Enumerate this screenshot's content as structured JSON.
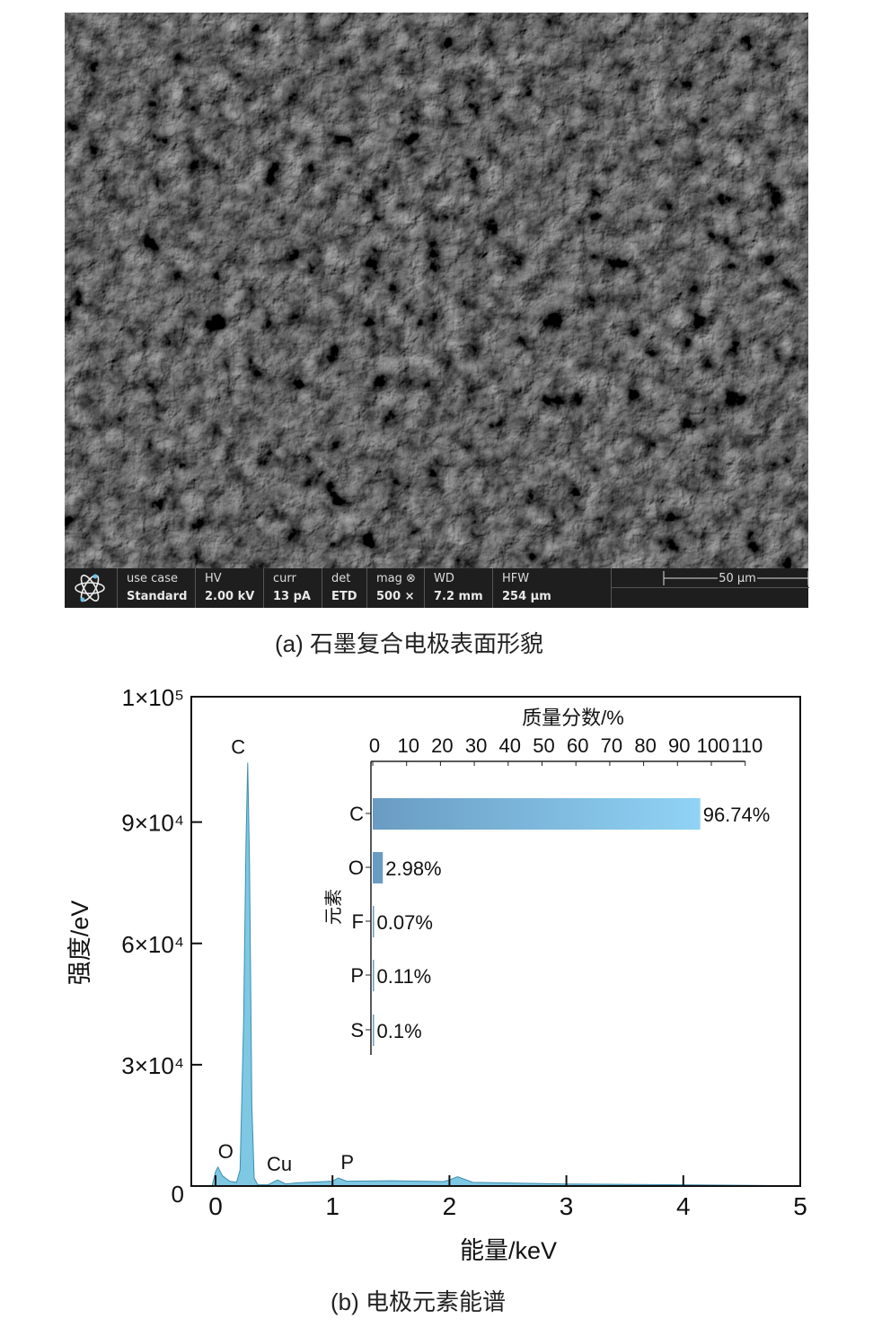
{
  "panel_a": {
    "caption": "(a) 石墨复合电极表面形貌",
    "info_bar": [
      {
        "key": "use case",
        "value": "Standard"
      },
      {
        "key": "HV",
        "value": "2.00 kV"
      },
      {
        "key": "curr",
        "value": "13 pA"
      },
      {
        "key": "det",
        "value": "ETD"
      },
      {
        "key": "mag ⊗",
        "value": "500 ×"
      },
      {
        "key": "WD",
        "value": "7.2 mm"
      },
      {
        "key": "HFW",
        "value": "254 μm"
      }
    ],
    "scale_bar": "50 μm",
    "logo_icon": "atom-icon"
  },
  "panel_b": {
    "caption": "(b) 电极元素能谱"
  },
  "chart_data": [
    {
      "type": "area",
      "xlabel": "能量/keV",
      "ylabel": "强度/eV",
      "xlim": [
        -0.2,
        5
      ],
      "ylim": [
        0,
        121000
      ],
      "xticks": [
        0,
        1,
        2,
        3,
        4,
        5
      ],
      "xtick_labels": [
        "0",
        "1",
        "2",
        "3",
        "4",
        "5"
      ],
      "yticks": [
        0,
        30000,
        60000,
        90000
      ],
      "ytick_labels": [
        "0",
        "3×10⁴",
        "6×10⁴",
        "9×10⁴"
      ],
      "ymax_label": "1×10⁵",
      "color": "#7ec8e3",
      "peak_labels": [
        {
          "label": "C",
          "x": 0.27,
          "y": 104700
        },
        {
          "label": "O",
          "x": 0.01,
          "y": 4700
        },
        {
          "label": "Cu",
          "x": 0.53,
          "y": 1500
        },
        {
          "label": "P",
          "x": 1.05,
          "y": 2000
        }
      ],
      "x": [
        -0.03,
        0.0,
        0.02,
        0.06,
        0.12,
        0.18,
        0.21,
        0.24,
        0.26,
        0.275,
        0.29,
        0.31,
        0.33,
        0.36,
        0.45,
        0.53,
        0.6,
        0.7,
        1.0,
        1.05,
        1.12,
        1.5,
        1.95,
        2.0,
        2.07,
        2.2,
        3.0,
        4.0,
        4.8
      ],
      "y": [
        0,
        3500,
        4700,
        2500,
        1200,
        900,
        4000,
        40000,
        85000,
        104700,
        80000,
        20000,
        2000,
        300,
        300,
        1500,
        500,
        800,
        1200,
        2000,
        1200,
        1300,
        1100,
        1500,
        2300,
        900,
        500,
        300,
        100
      ]
    },
    {
      "type": "bar",
      "orientation": "horizontal",
      "xlabel": "质量分数/%",
      "ylabel": "元素",
      "xlim": [
        0,
        110
      ],
      "xticks": [
        0,
        10,
        20,
        30,
        40,
        50,
        60,
        70,
        80,
        90,
        100,
        110
      ],
      "categories": [
        "C",
        "O",
        "F",
        "P",
        "S"
      ],
      "values": [
        96.74,
        2.98,
        0.07,
        0.11,
        0.1
      ],
      "data_labels": [
        "96.74%",
        "2.98%",
        "0.07%",
        "0.11%",
        "0.1%"
      ],
      "color_start": "#6a9cc3",
      "color_end": "#90d3f5"
    }
  ]
}
